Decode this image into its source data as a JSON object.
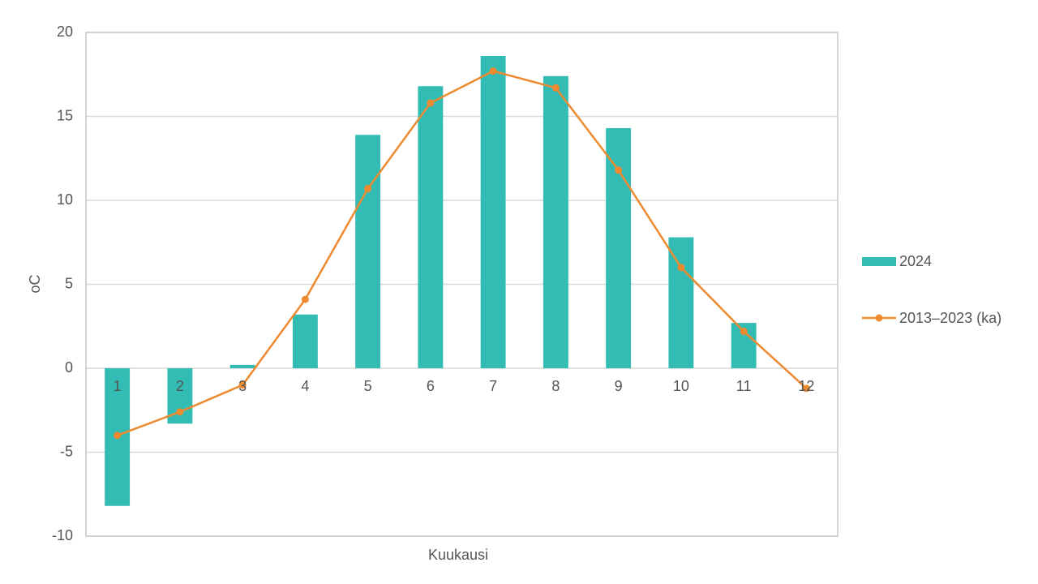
{
  "chart_data": {
    "type": "bar",
    "x_label": "Kuukausi",
    "y_label": "oC",
    "categories": [
      "1",
      "2",
      "3",
      "4",
      "5",
      "6",
      "7",
      "8",
      "9",
      "10",
      "11",
      "12"
    ],
    "series": [
      {
        "name": "2024",
        "type": "bar",
        "color": "#33bcb4",
        "values": [
          -8.2,
          -3.3,
          0.2,
          3.2,
          13.9,
          16.8,
          18.6,
          17.4,
          14.3,
          7.8,
          2.7,
          null
        ]
      },
      {
        "name": "2013–2023 (ka)",
        "type": "line",
        "color": "#ee8a30",
        "values": [
          -4.0,
          -2.6,
          -1.0,
          4.1,
          10.7,
          15.8,
          17.7,
          16.7,
          11.8,
          6.0,
          2.2,
          -1.2
        ]
      }
    ],
    "ylim": [
      -10,
      20
    ],
    "yticks": [
      -10,
      -5,
      0,
      5,
      10,
      15,
      20
    ],
    "grid": true,
    "legend": "right"
  }
}
